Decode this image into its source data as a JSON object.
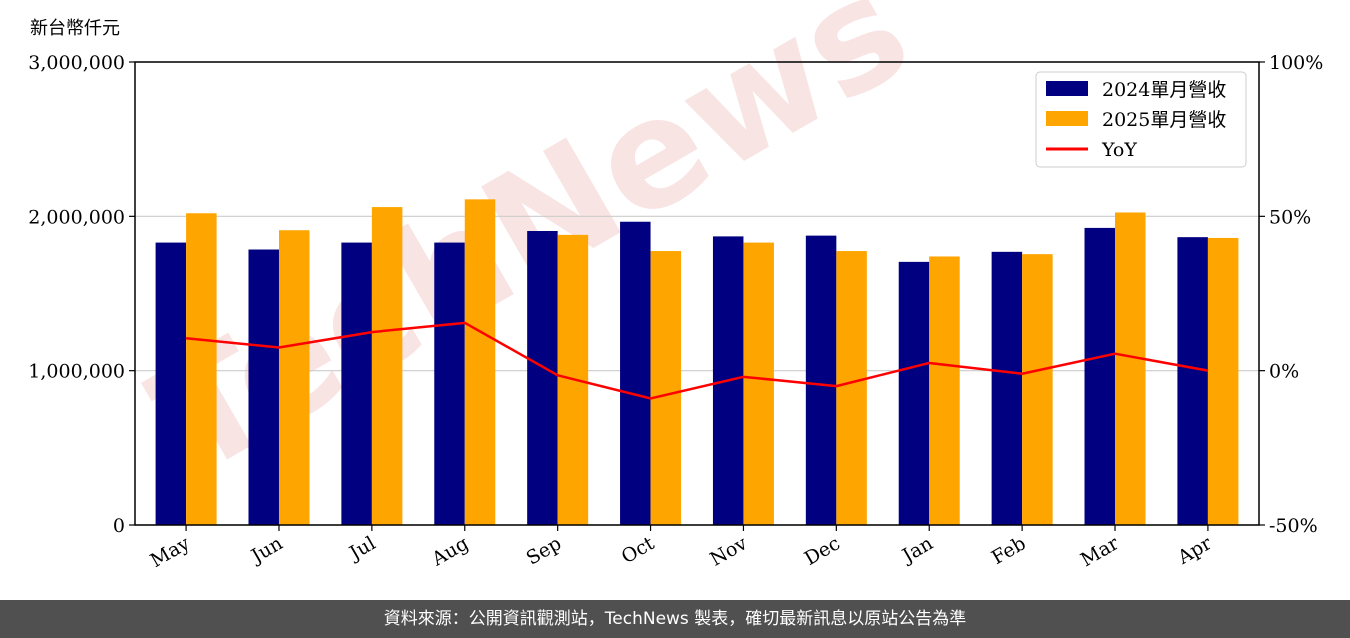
{
  "unit_label": "新台幣仟元",
  "watermark": "TechNews",
  "footer_text": "資料來源：公開資訊觀測站，TechNews 製表，確切最新訊息以原站公告為準",
  "colors": {
    "s2024": "#000080",
    "s2025": "#FFA500",
    "yoy": "#FF0000",
    "watermark": "#F2C4C4"
  },
  "chart_data": {
    "type": "bar",
    "categories": [
      "May",
      "Jun",
      "Jul",
      "Aug",
      "Sep",
      "Oct",
      "Nov",
      "Dec",
      "Jan",
      "Feb",
      "Mar",
      "Apr"
    ],
    "series": [
      {
        "name": "2024單月營收",
        "type": "bar",
        "axis": "left",
        "values": [
          1830000,
          1785000,
          1830000,
          1830000,
          1905000,
          1965000,
          1870000,
          1875000,
          1705000,
          1770000,
          1925000,
          1865000
        ]
      },
      {
        "name": "2025單月營收",
        "type": "bar",
        "axis": "left",
        "values": [
          2020000,
          1910000,
          2060000,
          2110000,
          1880000,
          1775000,
          1830000,
          1775000,
          1740000,
          1755000,
          2025000,
          1860000
        ]
      },
      {
        "name": "YoY",
        "type": "line",
        "axis": "right",
        "values": [
          10.5,
          7.5,
          12.5,
          15.5,
          -1.5,
          -9,
          -2,
          -5,
          2.5,
          -1,
          5.5,
          0
        ]
      }
    ],
    "ylim": [
      0,
      3000000
    ],
    "yticks": [
      "0",
      "1,000,000",
      "2,000,000",
      "3,000,000"
    ],
    "ylim_right": [
      -50,
      100
    ],
    "yticks_right": [
      "-50%",
      "0%",
      "50%",
      "100%"
    ],
    "legend": "top-right",
    "grid": "horizontal"
  }
}
